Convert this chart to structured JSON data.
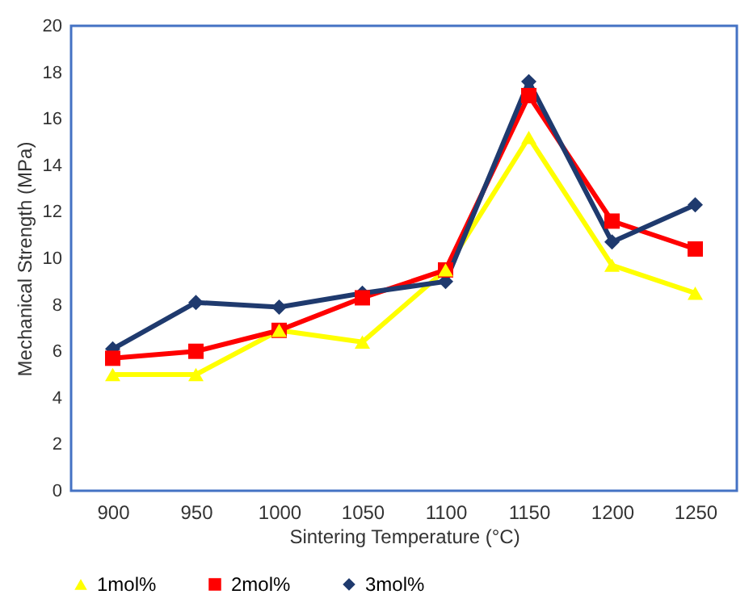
{
  "chart_data": {
    "type": "line",
    "xlabel": "Sintering Temperature (°C)",
    "ylabel": "Mechanical Strength (MPa)",
    "categories": [
      "900",
      "950",
      "1000",
      "1050",
      "1100",
      "1150",
      "1200",
      "1250"
    ],
    "ylim": [
      0,
      20
    ],
    "yticks": [
      0,
      2,
      4,
      6,
      8,
      10,
      12,
      14,
      16,
      18,
      20
    ],
    "grid": false,
    "legend": "bottom",
    "line_style": "solid",
    "series": [
      {
        "name": "1mol%",
        "color": "#ffff00",
        "marker": "triangle",
        "values": [
          5.0,
          5.0,
          6.9,
          6.4,
          9.5,
          15.2,
          9.7,
          8.5
        ]
      },
      {
        "name": "2mol%",
        "color": "#ff0000",
        "marker": "square",
        "values": [
          5.7,
          6.0,
          6.9,
          8.3,
          9.5,
          17.0,
          11.6,
          10.4
        ]
      },
      {
        "name": "3mol%",
        "color": "#1f3a6e",
        "marker": "diamond",
        "values": [
          6.1,
          8.1,
          7.9,
          8.5,
          9.0,
          17.6,
          10.7,
          12.3
        ]
      }
    ]
  }
}
